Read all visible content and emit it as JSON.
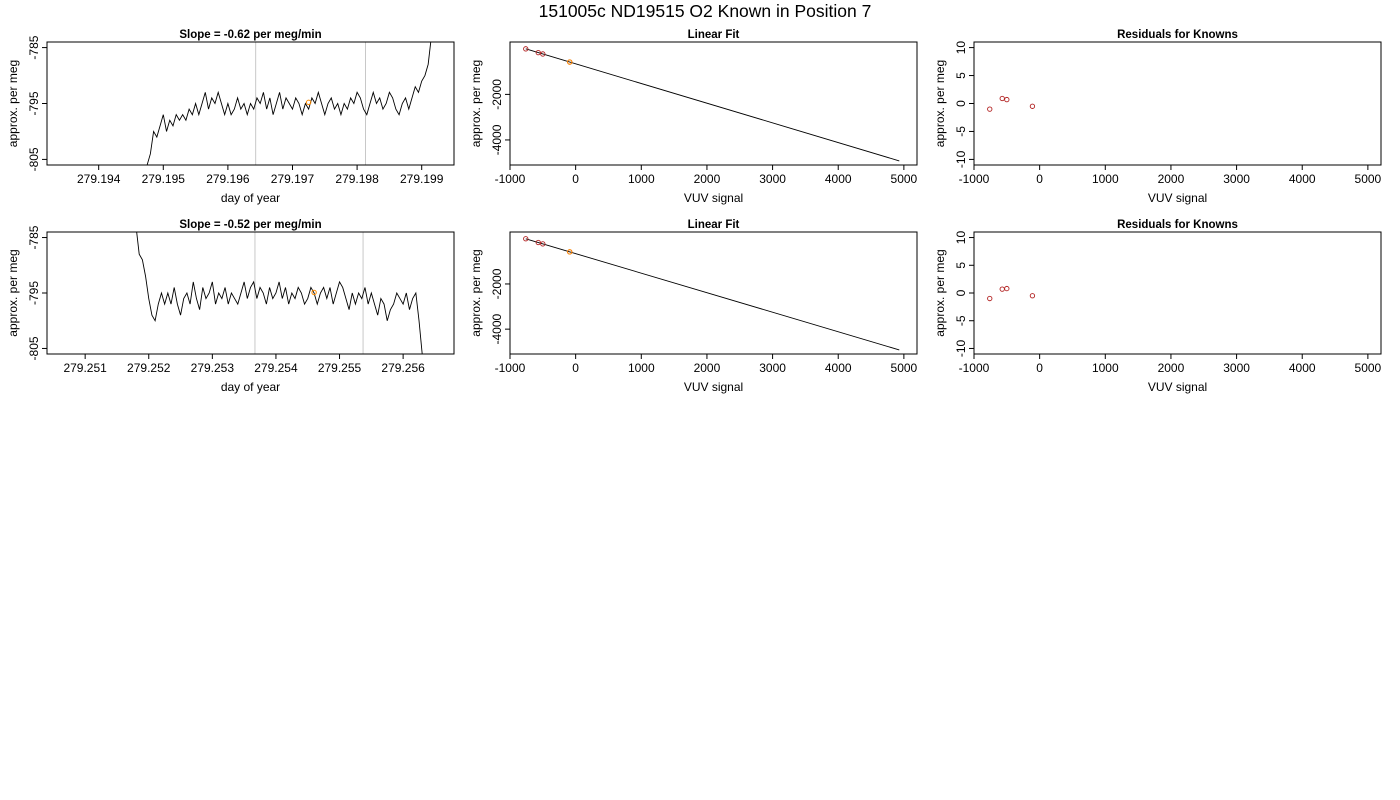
{
  "figure": {
    "title": "151005c     ND19515   O2 Known in Position  7",
    "colors": {
      "line": "#000000",
      "frame": "#000000",
      "marker_lines": "#c8c8c8",
      "known_points": "#b22222",
      "sample_point": "#ff8c00"
    }
  },
  "chart_data": [
    {
      "id": "row1-timeseries",
      "type": "line",
      "title": "Slope =  -0.62  per meg/min",
      "xlabel": "day of year",
      "ylabel": "approx. per meg",
      "xlim": [
        279.1932,
        279.1995
      ],
      "ylim": [
        -806,
        -784
      ],
      "xticks": [
        279.194,
        279.195,
        279.196,
        279.197,
        279.198,
        279.199
      ],
      "xtick_labels": [
        "279.194",
        "279.195",
        "279.196",
        "279.197",
        "279.198",
        "279.199"
      ],
      "yticks": [
        -805,
        -795,
        -785
      ],
      "ytick_labels": [
        "-805",
        "-795",
        "-785"
      ],
      "vlines": [
        279.19643,
        279.19813
      ],
      "series": [
        {
          "x": [
            279.19475,
            279.1948,
            279.19485,
            279.1949,
            279.19495,
            279.195,
            279.19505,
            279.1951,
            279.19515,
            279.1952,
            279.19525,
            279.1953,
            279.19535,
            279.1954,
            279.19545,
            279.1955,
            279.19555,
            279.1956,
            279.19565,
            279.1957,
            279.19575,
            279.1958,
            279.19585,
            279.1959,
            279.19595,
            279.196,
            279.19605,
            279.1961,
            279.19615,
            279.1962,
            279.19625,
            279.1963,
            279.19635,
            279.1964,
            279.19645,
            279.1965,
            279.19655,
            279.1966,
            279.19665,
            279.1967,
            279.19675,
            279.1968,
            279.19685,
            279.1969,
            279.19695,
            279.197,
            279.19705,
            279.1971,
            279.19715,
            279.1972,
            279.19725,
            279.1973,
            279.19735,
            279.1974,
            279.19745,
            279.1975,
            279.19755,
            279.1976,
            279.19765,
            279.1977,
            279.19775,
            279.1978,
            279.19785,
            279.1979,
            279.19795,
            279.198,
            279.19805,
            279.1981,
            279.19815,
            279.1982,
            279.19825,
            279.1983,
            279.19835,
            279.1984,
            279.19845,
            279.1985,
            279.19855,
            279.1986,
            279.19865,
            279.1987,
            279.19875,
            279.1988,
            279.19885,
            279.1989,
            279.19895,
            279.199,
            279.19905,
            279.1991,
            279.19915
          ],
          "y": [
            -806,
            -804,
            -800,
            -801,
            -799,
            -797,
            -800,
            -798,
            -799,
            -797,
            -798,
            -797,
            -798,
            -796,
            -797,
            -795,
            -797,
            -795,
            -793,
            -796,
            -794,
            -795,
            -793,
            -795,
            -797,
            -795,
            -797,
            -796,
            -794,
            -796,
            -795,
            -797,
            -795,
            -796,
            -794,
            -795,
            -793,
            -796,
            -794,
            -797,
            -795,
            -793,
            -796,
            -794,
            -795,
            -796,
            -794,
            -795,
            -797,
            -795,
            -796,
            -794,
            -795,
            -793,
            -795,
            -797,
            -795,
            -794,
            -796,
            -795,
            -797,
            -795,
            -796,
            -794,
            -795,
            -793,
            -794,
            -796,
            -797,
            -795,
            -793,
            -795,
            -794,
            -796,
            -795,
            -793,
            -794,
            -796,
            -797,
            -795,
            -794,
            -796,
            -794,
            -792,
            -793,
            -791,
            -790,
            -788,
            -783
          ]
        }
      ],
      "sample_point": {
        "x": 279.19725,
        "y": -794.8
      }
    },
    {
      "id": "row1-linear-fit",
      "type": "scatter",
      "title": "Linear Fit",
      "xlabel": "VUV signal",
      "ylabel": "approx. per meg",
      "xlim": [
        -1000,
        5200
      ],
      "ylim": [
        -5100,
        300
      ],
      "xticks": [
        -1000,
        0,
        1000,
        2000,
        3000,
        4000,
        5000
      ],
      "xtick_labels": [
        "-1000",
        "0",
        "1000",
        "2000",
        "3000",
        "4000",
        "5000"
      ],
      "yticks": [
        -4000,
        -2000
      ],
      "ytick_labels": [
        "-4000",
        "-2000"
      ],
      "fit_line": {
        "x": [
          -760,
          4930
        ],
        "y": [
          0,
          -4920
        ]
      },
      "knowns": {
        "x": [
          -760,
          -570,
          -500,
          -90
        ],
        "y": [
          0,
          -165,
          -225,
          -580
        ]
      },
      "sample_point": {
        "x": -90,
        "y": -580
      }
    },
    {
      "id": "row1-residuals",
      "type": "scatter",
      "title": "Residuals for Knowns",
      "xlabel": "VUV signal",
      "ylabel": "approx. per meg",
      "xlim": [
        -1000,
        5200
      ],
      "ylim": [
        -11,
        11
      ],
      "xticks": [
        -1000,
        0,
        1000,
        2000,
        3000,
        4000,
        5000
      ],
      "xtick_labels": [
        "-1000",
        "0",
        "1000",
        "2000",
        "3000",
        "4000",
        "5000"
      ],
      "yticks": [
        -10,
        -5,
        0,
        5,
        10
      ],
      "ytick_labels": [
        "-10",
        "-5",
        "0",
        "5",
        "10"
      ],
      "knowns": {
        "x": [
          -760,
          -570,
          -500,
          -110
        ],
        "y": [
          -1.0,
          0.9,
          0.7,
          -0.5
        ]
      }
    },
    {
      "id": "row2-timeseries",
      "type": "line",
      "title": "Slope =  -0.52  per meg/min",
      "xlabel": "day of year",
      "ylabel": "approx. per meg",
      "xlim": [
        279.2504,
        279.2568
      ],
      "ylim": [
        -806,
        -784
      ],
      "xticks": [
        279.251,
        279.252,
        279.253,
        279.254,
        279.255,
        279.256
      ],
      "xtick_labels": [
        "279.251",
        "279.252",
        "279.253",
        "279.254",
        "279.255",
        "279.256"
      ],
      "yticks": [
        -805,
        -795,
        -785
      ],
      "ytick_labels": [
        "-805",
        "-795",
        "-785"
      ],
      "vlines": [
        279.25367,
        279.25537
      ],
      "series": [
        {
          "x": [
            279.2518,
            279.25185,
            279.2519,
            279.25195,
            279.252,
            279.25205,
            279.2521,
            279.25215,
            279.2522,
            279.25225,
            279.2523,
            279.25235,
            279.2524,
            279.25245,
            279.2525,
            279.25255,
            279.2526,
            279.25265,
            279.2527,
            279.25275,
            279.2528,
            279.25285,
            279.2529,
            279.25295,
            279.253,
            279.25305,
            279.2531,
            279.25315,
            279.2532,
            279.25325,
            279.2533,
            279.25335,
            279.2534,
            279.25345,
            279.2535,
            279.25355,
            279.2536,
            279.25365,
            279.2537,
            279.25375,
            279.2538,
            279.25385,
            279.2539,
            279.25395,
            279.254,
            279.25405,
            279.2541,
            279.25415,
            279.2542,
            279.25425,
            279.2543,
            279.25435,
            279.2544,
            279.25445,
            279.2545,
            279.25455,
            279.2546,
            279.25465,
            279.2547,
            279.25475,
            279.2548,
            279.25485,
            279.2549,
            279.25495,
            279.255,
            279.25505,
            279.2551,
            279.25515,
            279.2552,
            279.25525,
            279.2553,
            279.25535,
            279.2554,
            279.25545,
            279.2555,
            279.25555,
            279.2556,
            279.25565,
            279.2557,
            279.25575,
            279.2558,
            279.25585,
            279.2559,
            279.25595,
            279.256,
            279.25605,
            279.2561,
            279.25615,
            279.2562,
            279.25625,
            279.2563
          ],
          "y": [
            -783,
            -788,
            -789,
            -792,
            -796,
            -799,
            -800,
            -797,
            -795,
            -797,
            -795,
            -797,
            -794,
            -797,
            -799,
            -796,
            -795,
            -797,
            -793,
            -796,
            -798,
            -794,
            -796,
            -795,
            -793,
            -797,
            -795,
            -796,
            -794,
            -797,
            -795,
            -796,
            -797,
            -795,
            -793,
            -796,
            -794,
            -793,
            -796,
            -794,
            -795,
            -797,
            -794,
            -796,
            -795,
            -793,
            -796,
            -794,
            -797,
            -795,
            -796,
            -794,
            -795,
            -797,
            -796,
            -794,
            -795,
            -797,
            -795,
            -794,
            -796,
            -794,
            -797,
            -795,
            -793,
            -794,
            -796,
            -798,
            -795,
            -797,
            -795,
            -796,
            -794,
            -797,
            -795,
            -797,
            -799,
            -796,
            -797,
            -800,
            -798,
            -797,
            -795,
            -796,
            -797,
            -795,
            -798,
            -796,
            -795,
            -800,
            -806
          ]
        }
      ],
      "sample_point": {
        "x": 279.2546,
        "y": -794.9
      }
    },
    {
      "id": "row2-linear-fit",
      "type": "scatter",
      "title": "Linear Fit",
      "xlabel": "VUV signal",
      "ylabel": "approx. per meg",
      "xlim": [
        -1000,
        5200
      ],
      "ylim": [
        -5100,
        300
      ],
      "xticks": [
        -1000,
        0,
        1000,
        2000,
        3000,
        4000,
        5000
      ],
      "xtick_labels": [
        "-1000",
        "0",
        "1000",
        "2000",
        "3000",
        "4000",
        "5000"
      ],
      "yticks": [
        -4000,
        -2000
      ],
      "ytick_labels": [
        "-4000",
        "-2000"
      ],
      "fit_line": {
        "x": [
          -760,
          4930
        ],
        "y": [
          0,
          -4920
        ]
      },
      "knowns": {
        "x": [
          -760,
          -570,
          -500,
          -90
        ],
        "y": [
          0,
          -165,
          -225,
          -580
        ]
      },
      "sample_point": {
        "x": -90,
        "y": -580
      }
    },
    {
      "id": "row2-residuals",
      "type": "scatter",
      "title": "Residuals for Knowns",
      "xlabel": "VUV signal",
      "ylabel": "approx. per meg",
      "xlim": [
        -1000,
        5200
      ],
      "ylim": [
        -11,
        11
      ],
      "xticks": [
        -1000,
        0,
        1000,
        2000,
        3000,
        4000,
        5000
      ],
      "xtick_labels": [
        "-1000",
        "0",
        "1000",
        "2000",
        "3000",
        "4000",
        "5000"
      ],
      "yticks": [
        -10,
        -5,
        0,
        5,
        10
      ],
      "ytick_labels": [
        "-10",
        "-5",
        "0",
        "5",
        "10"
      ],
      "knowns": {
        "x": [
          -760,
          -570,
          -500,
          -110
        ],
        "y": [
          -1.0,
          0.7,
          0.8,
          -0.5
        ]
      }
    }
  ]
}
